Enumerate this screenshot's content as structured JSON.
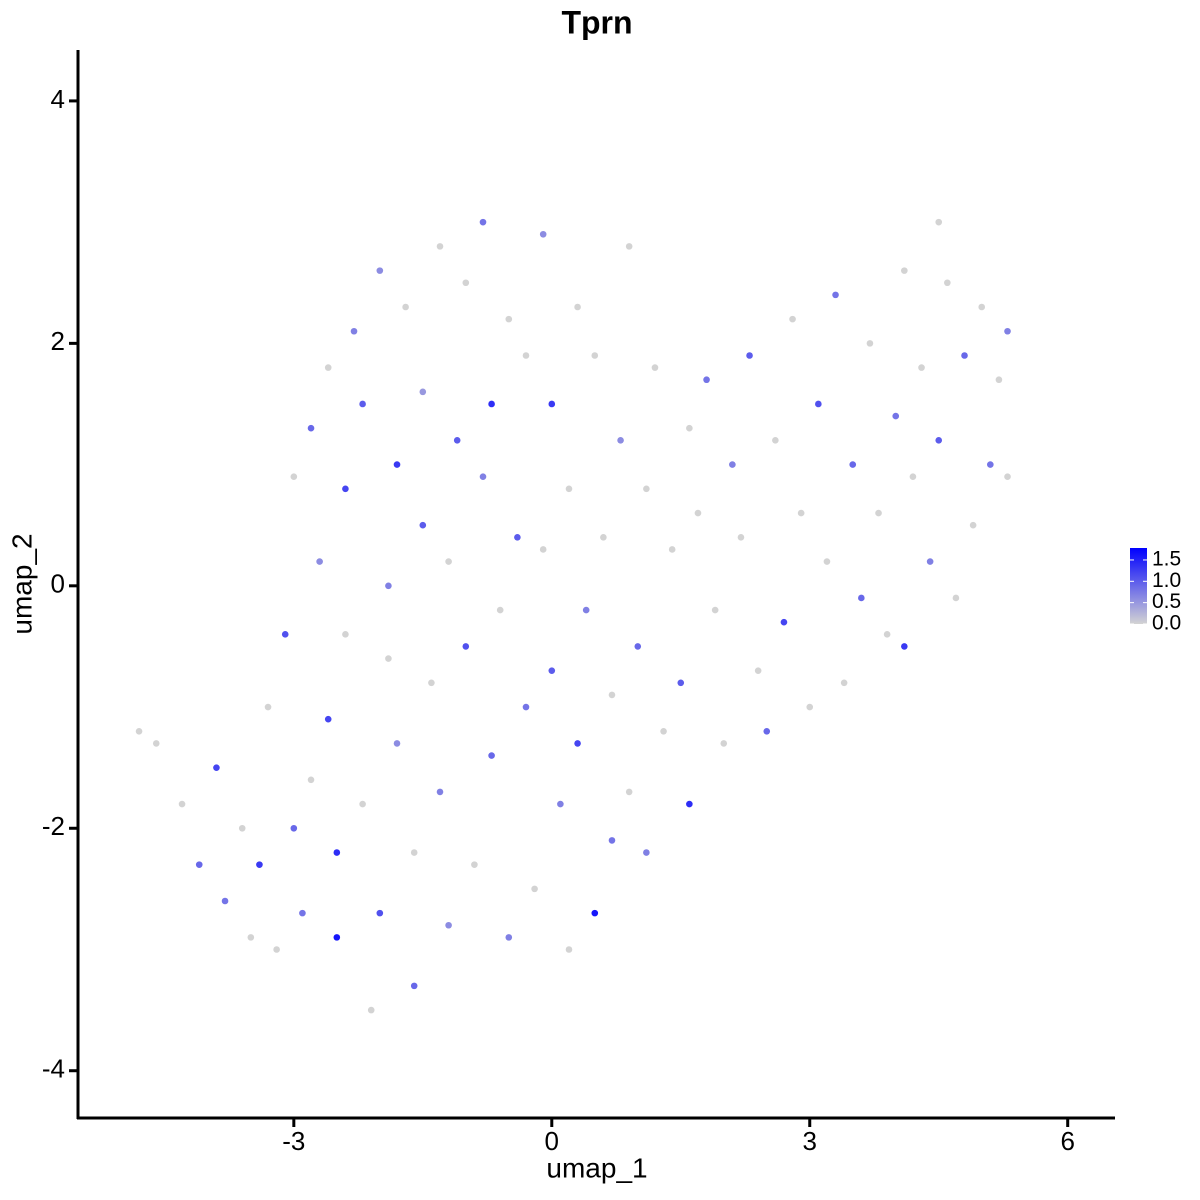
{
  "chart_data": {
    "type": "scatter",
    "title": "Tprn",
    "x_label": "umap_1",
    "y_label": "umap_2",
    "xlim": [
      -5.51,
      6.55
    ],
    "ylim": [
      -4.39,
      4.42
    ],
    "xticks": [
      -3,
      0,
      3,
      6
    ],
    "yticks": [
      -4,
      -2,
      0,
      2,
      4
    ],
    "color_low": "#d3d3d3",
    "color_high": "#0000ff",
    "colorlim": [
      0,
      1.78
    ],
    "colorbar_ticks": [
      {
        "value": 0,
        "label": "0.0"
      },
      {
        "value": 0.5,
        "label": "0.5"
      },
      {
        "value": 1,
        "label": "1.0"
      },
      {
        "value": 1.5,
        "label": "1.5"
      }
    ],
    "x": [
      -4.8,
      -4.6,
      -4.3,
      -4.1,
      -3.9,
      -3.8,
      -3.6,
      -3.5,
      -3.4,
      -3.3,
      -3.2,
      -3.1,
      -3.0,
      -3.0,
      -2.9,
      -2.8,
      -2.8,
      -2.7,
      -2.6,
      -2.6,
      -2.5,
      -2.5,
      -2.4,
      -2.4,
      -2.3,
      -2.2,
      -2.2,
      -2.1,
      -2.0,
      -2.0,
      -1.9,
      -1.9,
      -1.8,
      -1.8,
      -1.7,
      -1.6,
      -1.6,
      -1.5,
      -1.5,
      -1.4,
      -1.3,
      -1.3,
      -1.2,
      -1.2,
      -1.1,
      -1.0,
      -1.0,
      -0.9,
      -0.8,
      -0.8,
      -0.7,
      -0.7,
      -0.6,
      -0.5,
      -0.5,
      -0.4,
      -0.3,
      -0.3,
      -0.2,
      -0.1,
      -0.1,
      0.0,
      0.0,
      0.1,
      0.2,
      0.2,
      0.3,
      0.3,
      0.4,
      0.5,
      0.5,
      0.6,
      0.7,
      0.7,
      0.8,
      0.9,
      0.9,
      1.0,
      1.1,
      1.1,
      1.2,
      1.3,
      1.4,
      1.5,
      1.6,
      1.6,
      1.7,
      1.8,
      1.9,
      2.0,
      2.1,
      2.2,
      2.3,
      2.4,
      2.5,
      2.6,
      2.7,
      2.8,
      2.9,
      3.0,
      3.1,
      3.2,
      3.3,
      3.4,
      3.5,
      3.6,
      3.7,
      3.8,
      3.9,
      4.0,
      4.1,
      4.1,
      4.2,
      4.3,
      4.4,
      4.5,
      4.5,
      4.6,
      4.7,
      4.8,
      4.9,
      5.0,
      5.1,
      5.2,
      5.3,
      5.3
    ],
    "y": [
      -1.2,
      -1.3,
      -1.8,
      -2.3,
      -1.5,
      -2.6,
      -2.0,
      -2.9,
      -2.3,
      -1.0,
      -3.0,
      -0.4,
      -2.0,
      0.9,
      -2.7,
      1.3,
      -1.6,
      0.2,
      -1.1,
      1.8,
      -2.9,
      -2.2,
      0.8,
      -0.4,
      2.1,
      -1.8,
      1.5,
      -3.5,
      -2.7,
      2.6,
      -0.6,
      0.0,
      1.0,
      -1.3,
      2.3,
      -3.3,
      -2.2,
      0.5,
      1.6,
      -0.8,
      2.8,
      -1.7,
      0.2,
      -2.8,
      1.2,
      -0.5,
      2.5,
      -2.3,
      0.9,
      3.0,
      -1.4,
      1.5,
      -0.2,
      2.2,
      -2.9,
      0.4,
      -1.0,
      1.9,
      -2.5,
      0.3,
      2.9,
      -0.7,
      1.5,
      -1.8,
      -3.0,
      0.8,
      2.3,
      -1.3,
      -0.2,
      -2.7,
      1.9,
      0.4,
      -2.1,
      -0.9,
      1.2,
      -1.7,
      2.8,
      -0.5,
      0.8,
      -2.2,
      1.8,
      -1.2,
      0.3,
      -0.8,
      1.3,
      -1.8,
      0.6,
      1.7,
      -0.2,
      -1.3,
      1.0,
      0.4,
      1.9,
      -0.7,
      -1.2,
      1.2,
      -0.3,
      2.2,
      0.6,
      -1.0,
      1.5,
      0.2,
      2.4,
      -0.8,
      1.0,
      -0.1,
      2.0,
      0.6,
      -0.4,
      1.4,
      2.6,
      -0.5,
      0.9,
      1.8,
      0.2,
      3.0,
      1.2,
      2.5,
      -0.1,
      1.9,
      0.5,
      2.3,
      1.0,
      1.7,
      2.1,
      0.9
    ],
    "values": [
      0,
      0,
      0,
      0.9,
      1.2,
      0.8,
      0,
      0,
      1.3,
      0,
      0,
      1.1,
      0.9,
      0,
      0.8,
      0.9,
      0,
      0.6,
      1.2,
      0,
      1.6,
      1.4,
      1.2,
      0,
      0.7,
      0,
      1.0,
      0,
      1.1,
      0.6,
      0,
      0.7,
      1.3,
      0.6,
      0,
      0.9,
      0,
      1.0,
      0.5,
      0,
      0,
      0.7,
      0,
      0.6,
      1.0,
      1.1,
      0,
      0,
      0.7,
      0.8,
      0.9,
      1.4,
      0,
      0,
      0.7,
      1.0,
      0.8,
      0,
      0,
      0,
      0.6,
      1.0,
      1.3,
      0.7,
      0,
      0,
      0,
      1.2,
      0.7,
      1.6,
      0,
      0,
      0.8,
      0,
      0.6,
      0,
      0,
      0.9,
      0,
      0.7,
      0,
      0,
      0,
      1.0,
      0,
      1.4,
      0,
      0.8,
      0,
      0,
      0.7,
      0,
      1.0,
      0,
      0.9,
      0,
      1.2,
      0,
      0,
      0,
      1.1,
      0,
      0.8,
      0,
      0.9,
      0.9,
      0,
      0,
      0,
      0.8,
      0,
      1.3,
      0,
      0,
      0.7,
      0,
      1.0,
      0,
      0,
      0.9,
      0,
      0,
      0.8,
      0,
      0.7,
      0
    ]
  }
}
